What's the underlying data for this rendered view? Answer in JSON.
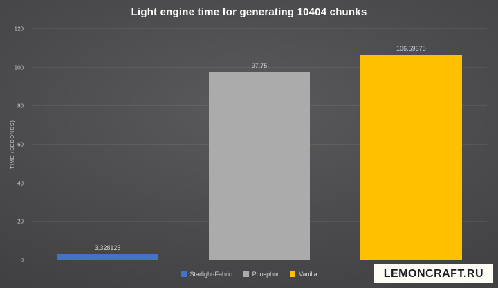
{
  "chart_data": {
    "type": "bar",
    "title": "Light engine time for generating 10404 chunks",
    "ylabel": "TIME (SECONDS)",
    "categories": [
      "Starlight-Fabric",
      "Phosphor",
      "Vanilla"
    ],
    "values": [
      3.328125,
      97.75,
      106.59375
    ],
    "value_labels": [
      "3.328125",
      "97.75",
      "106.59375"
    ],
    "colors": [
      "#4472c4",
      "#ababab",
      "#ffc000"
    ],
    "ylim": [
      0,
      120
    ],
    "ytick_step": 20,
    "grid": true,
    "legend_position": "bottom"
  },
  "watermark": {
    "text": "LEMONCRAFT.RU"
  }
}
